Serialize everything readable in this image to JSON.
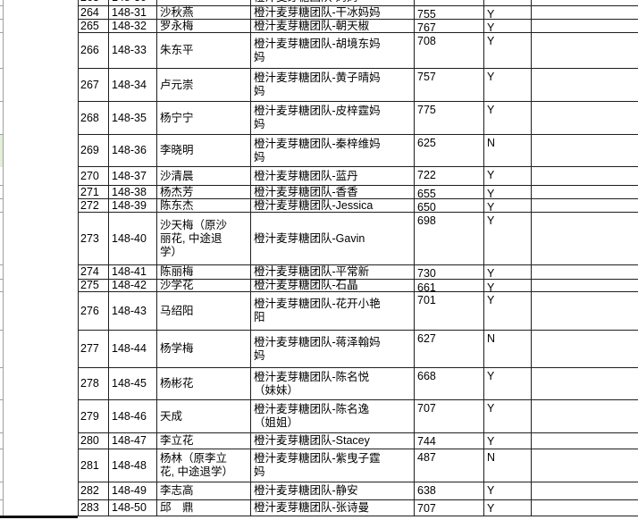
{
  "colors": {
    "grid_line": "#1f1f1f",
    "tick_line": "#a0a0a0",
    "highlight_green": "#e2efda",
    "text": "#000000",
    "background": "#ffffff"
  },
  "table": {
    "columns": [
      "row_no",
      "member_id",
      "name",
      "team_entry",
      "score",
      "flag",
      "notes"
    ],
    "partial_top_row": {
      "row_no": "263",
      "member_id": "148-30",
      "name": "",
      "team_entry": "橙汁麦芽糖团队-妈妈",
      "score": "",
      "flag": "",
      "notes": ""
    },
    "rows": [
      {
        "row_no": "264",
        "member_id": "148-31",
        "name": "沙秋燕",
        "team_entry": "橙汁麦芽糖团队-干冰妈妈",
        "score": "755",
        "flag": "Y",
        "notes": ""
      },
      {
        "row_no": "265",
        "member_id": "148-32",
        "name": "罗永梅",
        "team_entry": "橙汁麦芽糖团队-朝天椒",
        "score": "767",
        "flag": "Y",
        "notes": ""
      },
      {
        "row_no": "266",
        "member_id": "148-33",
        "name": "朱东平",
        "team_entry": "橙汁麦芽糖团队-胡境东妈\n妈",
        "score": "708",
        "flag": "Y",
        "notes": ""
      },
      {
        "row_no": "267",
        "member_id": "148-34",
        "name": "卢元崇",
        "team_entry": "橙汁麦芽糖团队-黄子晴妈\n妈",
        "score": "757",
        "flag": "Y",
        "notes": ""
      },
      {
        "row_no": "268",
        "member_id": "148-35",
        "name": "杨宁宁",
        "team_entry": "橙汁麦芽糖团队-皮梓霆妈\n妈",
        "score": "775",
        "flag": "Y",
        "notes": ""
      },
      {
        "row_no": "269",
        "member_id": "148-36",
        "name": "李晓明",
        "team_entry": "橙汁麦芽糖团队-秦梓维妈\n妈",
        "score": "625",
        "flag": "N",
        "notes": ""
      },
      {
        "row_no": "270",
        "member_id": "148-37",
        "name": "沙清晨",
        "team_entry": "橙汁麦芽糖团队-蓝丹",
        "score": "722",
        "flag": "Y",
        "notes": ""
      },
      {
        "row_no": "271",
        "member_id": "148-38",
        "name": "杨杰芳",
        "team_entry": "橙汁麦芽糖团队-香香",
        "score": "655",
        "flag": "Y",
        "notes": ""
      },
      {
        "row_no": "272",
        "member_id": "148-39",
        "name": "陈东杰",
        "team_entry": "橙汁麦芽糖团队-Jessica",
        "score": "650",
        "flag": "Y",
        "notes": ""
      },
      {
        "row_no": "273",
        "member_id": "148-40",
        "name": "沙天梅（原沙\n丽花, 中途退\n学）",
        "team_entry": "橙汁麦芽糖团队-Gavin",
        "score": "698",
        "flag": "Y",
        "notes": ""
      },
      {
        "row_no": "274",
        "member_id": "148-41",
        "name": "陈丽梅",
        "team_entry": "橙汁麦芽糖团队-平常新",
        "score": "730",
        "flag": "Y",
        "notes": ""
      },
      {
        "row_no": "275",
        "member_id": "148-42",
        "name": "沙学花",
        "team_entry": "橙汁麦芽糖团队-石晶",
        "score": "661",
        "flag": "Y",
        "notes": ""
      },
      {
        "row_no": "276",
        "member_id": "148-43",
        "name": "马绍阳",
        "team_entry": "橙汁麦芽糖团队-花开小艳\n阳",
        "score": "701",
        "flag": "Y",
        "notes": ""
      },
      {
        "row_no": "277",
        "member_id": "148-44",
        "name": "杨学梅",
        "team_entry": "橙汁麦芽糖团队-蒋泽翰妈\n妈",
        "score": "627",
        "flag": "N",
        "notes": ""
      },
      {
        "row_no": "278",
        "member_id": "148-45",
        "name": "杨彬花",
        "team_entry": "橙汁麦芽糖团队-陈名悦\n（妹妹）",
        "score": "668",
        "flag": "Y",
        "notes": ""
      },
      {
        "row_no": "279",
        "member_id": "148-46",
        "name": "天成",
        "team_entry": "橙汁麦芽糖团队-陈名逸\n（姐姐）",
        "score": "707",
        "flag": "Y",
        "notes": ""
      },
      {
        "row_no": "280",
        "member_id": "148-47",
        "name": "李立花",
        "team_entry": "橙汁麦芽糖团队-Stacey",
        "score": "744",
        "flag": "Y",
        "notes": ""
      },
      {
        "row_no": "281",
        "member_id": "148-48",
        "name": "杨林（原李立\n花, 中途退学）",
        "team_entry": "橙汁麦芽糖团队-紫曳子霆\n妈",
        "score": "487",
        "flag": "N",
        "notes": ""
      },
      {
        "row_no": "282",
        "member_id": "148-49",
        "name": "李志高",
        "team_entry": "橙汁麦芽糖团队-静安",
        "score": "638",
        "flag": "Y",
        "notes": ""
      },
      {
        "row_no": "283",
        "member_id": "148-50",
        "name": "邱　鼎",
        "team_entry": "橙汁麦芽糖团队-张诗曼",
        "score": "707",
        "flag": "Y",
        "notes": ""
      }
    ]
  },
  "left_margin": {
    "highlighted_row": "269",
    "highlight_color": "#e2efda"
  }
}
